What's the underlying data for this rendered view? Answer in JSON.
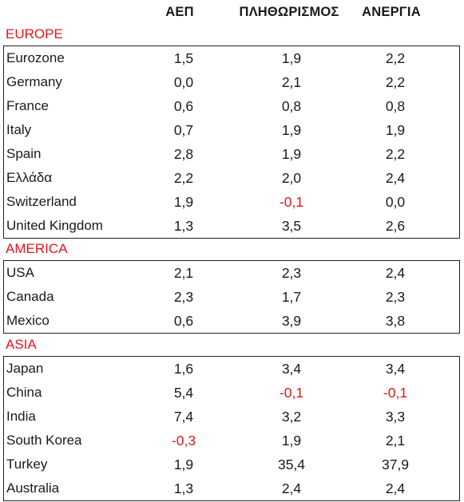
{
  "headers": [
    "ΑΕΠ",
    "ΠΛΗΘΩΡΙΣΜΟΣ",
    "ΑΝΕΡΓΙΑ"
  ],
  "colors": {
    "negative": "#e8141a",
    "region": "#e8141a",
    "text": "#1a1a1a",
    "border": "#222222"
  },
  "sections": [
    {
      "region": "EUROPE",
      "rows": [
        {
          "name": "Eurozone",
          "values": [
            "1,5",
            "1,9",
            "2,2"
          ]
        },
        {
          "name": "Germany",
          "values": [
            "0,0",
            "2,1",
            "2,2"
          ]
        },
        {
          "name": "France",
          "values": [
            "0,6",
            "0,8",
            "0,8"
          ]
        },
        {
          "name": "Italy",
          "values": [
            "0,7",
            "1,9",
            "1,9"
          ]
        },
        {
          "name": "Spain",
          "values": [
            "2,8",
            "1,9",
            "2,2"
          ]
        },
        {
          "name": "Ελλάδα",
          "values": [
            "2,2",
            "2,0",
            "2,4"
          ]
        },
        {
          "name": "Switzerland",
          "values": [
            "1,9",
            "-0,1",
            "0,0"
          ]
        },
        {
          "name": "United Kingdom",
          "values": [
            "1,3",
            "3,5",
            "2,6"
          ]
        }
      ]
    },
    {
      "region": "AMERICA",
      "rows": [
        {
          "name": "USA",
          "values": [
            "2,1",
            "2,3",
            "2,4"
          ]
        },
        {
          "name": "Canada",
          "values": [
            "2,3",
            "1,7",
            "2,3"
          ]
        },
        {
          "name": "Mexico",
          "values": [
            "0,6",
            "3,9",
            "3,8"
          ]
        }
      ]
    },
    {
      "region": "ASIA",
      "rows": [
        {
          "name": "Japan",
          "values": [
            "1,6",
            "3,4",
            "3,4"
          ]
        },
        {
          "name": "China",
          "values": [
            "5,4",
            "-0,1",
            "-0,1"
          ]
        },
        {
          "name": "India",
          "values": [
            "7,4",
            "3,2",
            "3,3"
          ]
        },
        {
          "name": "South Korea",
          "values": [
            "-0,3",
            "1,9",
            "2,1"
          ]
        },
        {
          "name": "Turkey",
          "values": [
            "1,9",
            "35,4",
            "37,9"
          ]
        },
        {
          "name": "Australia",
          "values": [
            "1,3",
            "2,4",
            "2,4"
          ]
        }
      ]
    }
  ]
}
